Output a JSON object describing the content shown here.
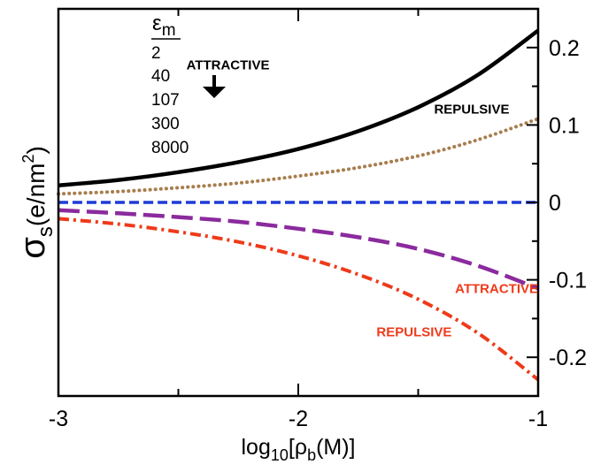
{
  "chart_data": {
    "type": "line",
    "title": "",
    "xlabel": {
      "prefix": "log",
      "sub": "10",
      "mid": "[ρ",
      "sub2": "b",
      "suffix": "(M)]"
    },
    "ylabel": {
      "main": "σ",
      "sub": "s",
      "unit_open": "(e/nm",
      "sup": "2",
      "unit_close": ")"
    },
    "xlim": [
      -3,
      -1
    ],
    "ylim": [
      -0.25,
      0.25
    ],
    "x_ticks": [
      {
        "value": -3,
        "label": "-3"
      },
      {
        "value": -2,
        "label": "-2"
      },
      {
        "value": -1,
        "label": "-1"
      }
    ],
    "y_ticks": [
      {
        "value": 0.2,
        "label": "0.2"
      },
      {
        "value": 0.1,
        "label": "0.1"
      },
      {
        "value": 0,
        "label": "0"
      },
      {
        "value": -0.1,
        "label": "-0.1"
      },
      {
        "value": -0.2,
        "label": "-0.2"
      }
    ],
    "legend": {
      "title": "ε",
      "title_sub": "m",
      "entries": [
        "2",
        "40",
        "107",
        "300",
        "8000"
      ],
      "arrow": "down"
    },
    "series": [
      {
        "eps": "2",
        "color": "#000000",
        "style": "solid",
        "x": [
          -3,
          -2.75,
          -2.5,
          -2.25,
          -2,
          -1.75,
          -1.5,
          -1.25,
          -1
        ],
        "y": [
          0.022,
          0.029,
          0.039,
          0.052,
          0.069,
          0.092,
          0.123,
          0.165,
          0.222
        ]
      },
      {
        "eps": "40",
        "color": "#a87d4e",
        "style": "dotted",
        "x": [
          -3,
          -2.75,
          -2.5,
          -2.25,
          -2,
          -1.75,
          -1.5,
          -1.25,
          -1
        ],
        "y": [
          0.011,
          0.014,
          0.019,
          0.025,
          0.034,
          0.045,
          0.06,
          0.081,
          0.108
        ]
      },
      {
        "eps": "107",
        "color": "#1e3ad8",
        "style": "dashed",
        "x": [
          -3,
          -2.5,
          -2,
          -1.5,
          -1
        ],
        "y": [
          0,
          0,
          0,
          0,
          0
        ]
      },
      {
        "eps": "300",
        "color": "#8b2a9e",
        "style": "longdash",
        "x": [
          -3,
          -2.75,
          -2.5,
          -2.25,
          -2,
          -1.75,
          -1.5,
          -1.25,
          -1
        ],
        "y": [
          -0.01,
          -0.014,
          -0.019,
          -0.025,
          -0.034,
          -0.045,
          -0.06,
          -0.082,
          -0.111
        ]
      },
      {
        "eps": "8000",
        "color": "#ee3a1a",
        "style": "dashdot",
        "x": [
          -3,
          -2.75,
          -2.5,
          -2.25,
          -2,
          -1.75,
          -1.5,
          -1.25,
          -1
        ],
        "y": [
          -0.021,
          -0.028,
          -0.038,
          -0.051,
          -0.069,
          -0.093,
          -0.125,
          -0.169,
          -0.229
        ]
      }
    ],
    "annotations": [
      {
        "text": "ATTRACTIVE",
        "color": "#000000",
        "x": -2.12,
        "y": 0.172
      },
      {
        "text": "REPULSIVE",
        "color": "#000000",
        "x": -1.12,
        "y": 0.115
      },
      {
        "text": "ATTRACTIVE",
        "color": "#ee3a1a",
        "x": -1.0,
        "y": -0.117
      },
      {
        "text": "REPULSIVE",
        "color": "#ee3a1a",
        "x": -1.36,
        "y": -0.173
      }
    ]
  }
}
